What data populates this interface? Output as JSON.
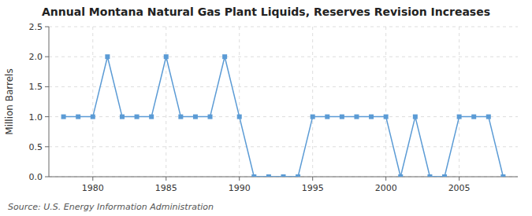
{
  "chart_data": {
    "type": "line",
    "title": "Annual Montana Natural Gas Plant Liquids, Reserves Revision Increases",
    "y_label": "Million Barrels",
    "annotations": [
      "Source: U.S. Energy Information Administration"
    ],
    "x": [
      1978,
      1979,
      1980,
      1981,
      1982,
      1983,
      1984,
      1985,
      1986,
      1987,
      1988,
      1989,
      1990,
      1991,
      1992,
      1993,
      1994,
      1995,
      1996,
      1997,
      1998,
      1999,
      2000,
      2001,
      2002,
      2003,
      2004,
      2005,
      2006,
      2007,
      2008
    ],
    "values": [
      1.0,
      1.0,
      1.0,
      2.0,
      1.0,
      1.0,
      1.0,
      2.0,
      1.0,
      1.0,
      1.0,
      2.0,
      1.0,
      0.0,
      0.0,
      0.0,
      0.0,
      1.0,
      1.0,
      1.0,
      1.0,
      1.0,
      1.0,
      0.0,
      1.0,
      0.0,
      0.0,
      1.0,
      1.0,
      1.0,
      0.0
    ],
    "color": "#5b9bd5",
    "marker": "square",
    "xlim": [
      1977,
      2009
    ],
    "ylim": [
      0,
      2.5
    ],
    "xticks": [
      1980,
      1985,
      1990,
      1995,
      2000,
      2005
    ],
    "yticks": [
      {
        "value": 0.0,
        "label": "0.0"
      },
      0.5,
      {
        "value": 1.0,
        "label": "1.0"
      },
      1.5,
      {
        "value": 2.0,
        "label": "2.0"
      },
      2.5
    ],
    "grid": true
  }
}
